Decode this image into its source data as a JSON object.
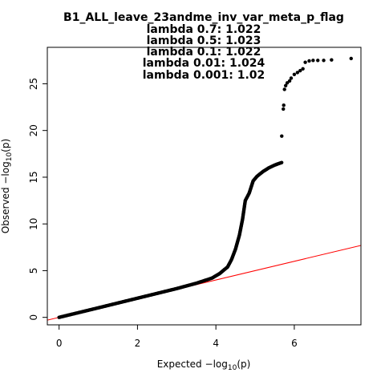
{
  "chart_data": {
    "type": "scatter",
    "title": "B1_ALL_leave_23andme_inv_var_meta_p_flag",
    "subtitles": [
      "lambda 0.7: 1.022",
      "lambda 0.5: 1.023",
      "lambda 0.1: 1.022",
      "lambda 0.01: 1.024",
      "lambda 0.001: 1.02"
    ],
    "xlabel": {
      "main": "Expected",
      "func": "log",
      "sub": "10",
      "arg": "(p)"
    },
    "ylabel": {
      "main": "Observed",
      "func": "log",
      "sub": "10",
      "arg": "(p)"
    },
    "xlim": [
      -0.3,
      7.7
    ],
    "ylim": [
      -0.8,
      28.9
    ],
    "xticks": [
      0,
      2,
      4,
      6
    ],
    "yticks": [
      0,
      5,
      10,
      15,
      20,
      25
    ],
    "grid": false,
    "point_color": "#000000",
    "reference_line": {
      "color": "#ff0000",
      "intercept": 0,
      "slope": 1
    },
    "curve": [
      [
        0.0,
        0.0
      ],
      [
        1.0,
        1.02
      ],
      [
        2.0,
        2.05
      ],
      [
        3.0,
        3.08
      ],
      [
        3.5,
        3.65
      ],
      [
        3.9,
        4.2
      ],
      [
        4.1,
        4.7
      ],
      [
        4.3,
        5.4
      ],
      [
        4.4,
        6.2
      ],
      [
        4.5,
        7.3
      ],
      [
        4.6,
        8.8
      ],
      [
        4.68,
        10.5
      ],
      [
        4.75,
        12.5
      ],
      [
        4.85,
        13.3
      ],
      [
        4.95,
        14.6
      ],
      [
        5.05,
        15.1
      ],
      [
        5.2,
        15.6
      ],
      [
        5.35,
        16.0
      ],
      [
        5.5,
        16.3
      ],
      [
        5.7,
        16.6
      ]
    ],
    "points_tail": [
      [
        5.68,
        19.4
      ],
      [
        5.72,
        22.3
      ],
      [
        5.73,
        22.7
      ],
      [
        5.75,
        24.4
      ],
      [
        5.78,
        24.8
      ],
      [
        5.82,
        25.1
      ],
      [
        5.88,
        25.3
      ],
      [
        5.92,
        25.6
      ],
      [
        6.0,
        26.0
      ],
      [
        6.08,
        26.2
      ],
      [
        6.15,
        26.4
      ],
      [
        6.22,
        26.6
      ],
      [
        6.28,
        27.3
      ],
      [
        6.38,
        27.45
      ],
      [
        6.48,
        27.5
      ],
      [
        6.6,
        27.5
      ],
      [
        6.75,
        27.5
      ],
      [
        6.95,
        27.55
      ],
      [
        7.45,
        27.7
      ]
    ]
  }
}
